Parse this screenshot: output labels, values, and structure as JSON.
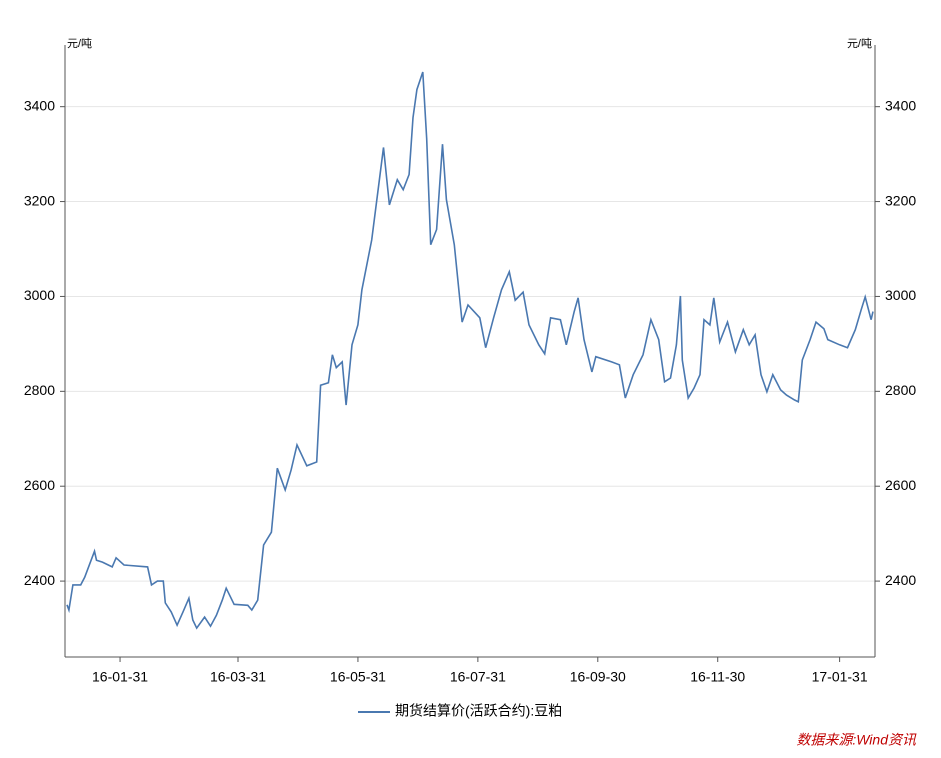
{
  "chart_data": {
    "type": "line",
    "y_unit": "元/吨",
    "source": "数据来源:Wind资讯",
    "x": [
      "16-01-04",
      "16-01-05",
      "16-01-07",
      "16-01-11",
      "16-01-13",
      "16-01-18",
      "16-01-19",
      "16-01-22",
      "16-01-27",
      "16-01-29",
      "16-02-02",
      "16-02-14",
      "16-02-16",
      "16-02-19",
      "16-02-22",
      "16-02-23",
      "16-02-26",
      "16-02-29",
      "16-03-03",
      "16-03-06",
      "16-03-08",
      "16-03-10",
      "16-03-14",
      "16-03-17",
      "16-03-20",
      "16-03-23",
      "16-03-25",
      "16-03-29",
      "16-04-05",
      "16-04-07",
      "16-04-10",
      "16-04-13",
      "16-04-17",
      "16-04-20",
      "16-04-24",
      "16-04-27",
      "16-04-30",
      "16-05-05",
      "16-05-10",
      "16-05-12",
      "16-05-16",
      "16-05-18",
      "16-05-20",
      "16-05-23",
      "16-05-25",
      "16-05-28",
      "16-05-31",
      "16-06-02",
      "16-06-07",
      "16-06-13",
      "16-06-16",
      "16-06-20",
      "16-06-23",
      "16-06-26",
      "16-06-28",
      "16-06-30",
      "16-07-03",
      "16-07-05",
      "16-07-07",
      "16-07-10",
      "16-07-13",
      "16-07-15",
      "16-07-19",
      "16-07-23",
      "16-07-26",
      "16-08-01",
      "16-08-04",
      "16-08-08",
      "16-08-12",
      "16-08-16",
      "16-08-19",
      "16-08-23",
      "16-08-26",
      "16-08-31",
      "16-09-03",
      "16-09-06",
      "16-09-11",
      "16-09-14",
      "16-09-18",
      "16-09-20",
      "16-09-23",
      "16-09-27",
      "16-09-29",
      "16-10-07",
      "16-10-11",
      "16-10-14",
      "16-10-18",
      "16-10-23",
      "16-10-27",
      "16-10-31",
      "16-11-03",
      "16-11-06",
      "16-11-09",
      "16-11-11",
      "16-11-12",
      "16-11-15",
      "16-11-18",
      "16-11-21",
      "16-11-23",
      "16-11-26",
      "16-11-28",
      "16-12-01",
      "16-12-05",
      "16-12-09",
      "16-12-13",
      "16-12-16",
      "16-12-19",
      "16-12-22",
      "16-12-25",
      "16-12-28",
      "17-01-01",
      "17-01-04",
      "17-01-08",
      "17-01-10",
      "17-01-12",
      "17-01-16",
      "17-01-19",
      "17-01-23",
      "17-01-25",
      "17-01-31",
      "17-02-04",
      "17-02-08",
      "17-02-11",
      "17-02-13",
      "17-02-16",
      "17-02-17"
    ],
    "series": [
      {
        "name": "期货结算价(活跃合约):豆粕",
        "color": "#4a78b0",
        "values": [
          2350,
          2339,
          2392,
          2392,
          2408,
          2463,
          2444,
          2440,
          2430,
          2449,
          2434,
          2430,
          2392,
          2400,
          2400,
          2354,
          2335,
          2307,
          2335,
          2364,
          2318,
          2301,
          2324,
          2305,
          2328,
          2360,
          2385,
          2351,
          2349,
          2339,
          2360,
          2476,
          2503,
          2638,
          2592,
          2634,
          2687,
          2643,
          2651,
          2813,
          2818,
          2877,
          2850,
          2862,
          2771,
          2898,
          2940,
          3014,
          3119,
          3314,
          3193,
          3246,
          3225,
          3257,
          3377,
          3436,
          3473,
          3332,
          3109,
          3141,
          3321,
          3204,
          3109,
          2946,
          2982,
          2955,
          2892,
          2955,
          3014,
          3052,
          2992,
          3009,
          2940,
          2898,
          2879,
          2955,
          2951,
          2898,
          2968,
          2997,
          2909,
          2841,
          2873,
          2862,
          2856,
          2786,
          2835,
          2877,
          2951,
          2909,
          2820,
          2828,
          2898,
          3001,
          2866,
          2786,
          2807,
          2835,
          2951,
          2940,
          2997,
          2904,
          2946,
          2883,
          2930,
          2898,
          2919,
          2835,
          2799,
          2835,
          2803,
          2792,
          2782,
          2778,
          2866,
          2909,
          2946,
          2932,
          2909,
          2898,
          2892,
          2930,
          2972,
          2999,
          2951,
          2968
        ]
      }
    ],
    "xlim": [
      "16-01-03",
      "17-02-18"
    ],
    "xticks": [
      "16-01-31",
      "16-03-31",
      "16-05-31",
      "16-07-31",
      "16-09-30",
      "16-11-30",
      "17-01-31"
    ],
    "ylim": [
      2240,
      3530
    ],
    "yticks": [
      2400,
      2600,
      2800,
      3000,
      3200,
      3400
    ],
    "grid": true
  }
}
